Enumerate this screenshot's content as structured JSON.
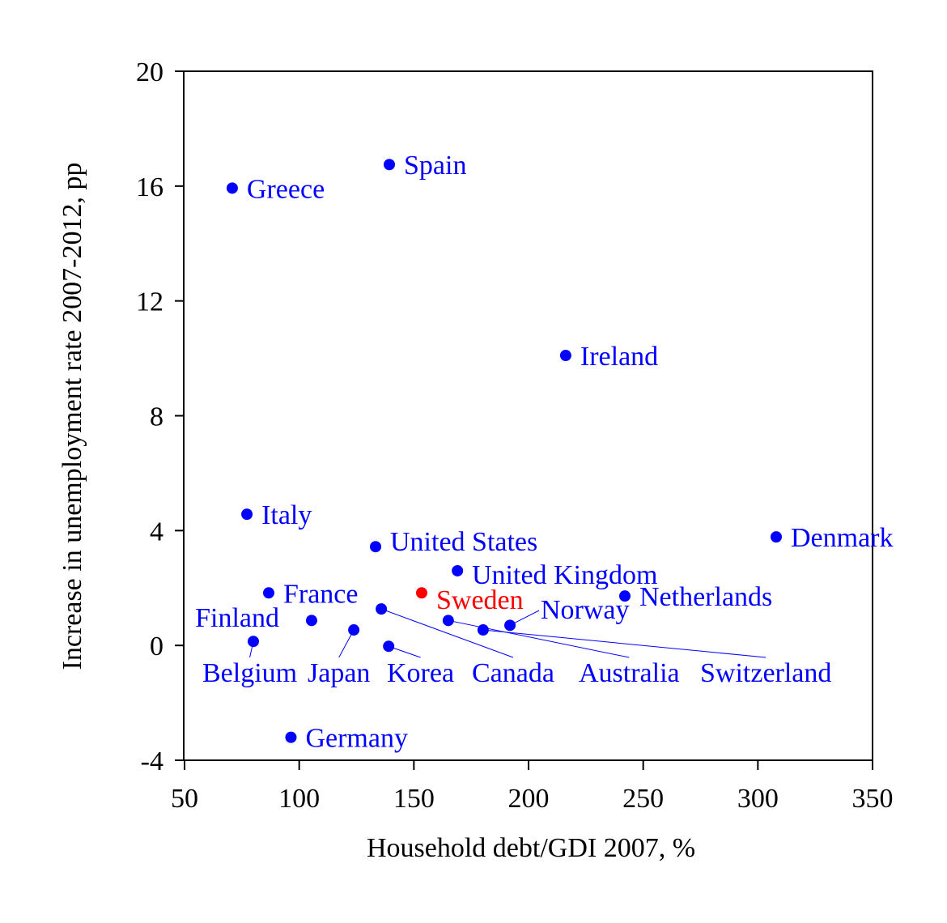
{
  "chart_data": {
    "type": "scatter",
    "title": "",
    "xlabel": "Household debt/GDI 2007, %",
    "ylabel": "Increase in unemployment rate 2007-2012, pp",
    "xlim": [
      50,
      350
    ],
    "ylim": [
      -4,
      20
    ],
    "xticks": [
      50,
      100,
      150,
      200,
      250,
      300,
      350
    ],
    "yticks": [
      -4,
      0,
      4,
      8,
      12,
      16,
      20
    ],
    "grid": false,
    "colors": {
      "default": "#0000ff",
      "highlight": "#ff0000"
    },
    "points": [
      {
        "label": "Greece",
        "x": 70.8,
        "y": 15.93,
        "color": "#0000ff"
      },
      {
        "label": "Spain",
        "x": 139.3,
        "y": 16.75,
        "color": "#0000ff"
      },
      {
        "label": "Ireland",
        "x": 216.2,
        "y": 10.1,
        "color": "#0000ff"
      },
      {
        "label": "Italy",
        "x": 77.2,
        "y": 4.57,
        "color": "#0000ff"
      },
      {
        "label": "Denmark",
        "x": 308.0,
        "y": 3.78,
        "color": "#0000ff"
      },
      {
        "label": "United States",
        "x": 133.3,
        "y": 3.44,
        "color": "#0000ff"
      },
      {
        "label": "United Kingdom",
        "x": 169.0,
        "y": 2.6,
        "color": "#0000ff"
      },
      {
        "label": "France",
        "x": 86.7,
        "y": 1.83,
        "color": "#0000ff"
      },
      {
        "label": "Sweden",
        "x": 153.4,
        "y": 1.83,
        "color": "#ff0000"
      },
      {
        "label": "Netherlands",
        "x": 242.0,
        "y": 1.72,
        "color": "#0000ff"
      },
      {
        "label": "Canada",
        "x": 135.8,
        "y": 1.27,
        "color": "#0000ff"
      },
      {
        "label": "Finland",
        "x": 105.4,
        "y": 0.87,
        "color": "#0000ff"
      },
      {
        "label": "Australia",
        "x": 165.0,
        "y": 0.87,
        "color": "#0000ff"
      },
      {
        "label": "Japan",
        "x": 123.8,
        "y": 0.54,
        "color": "#0000ff"
      },
      {
        "label": "Switzerland",
        "x": 180.2,
        "y": 0.54,
        "color": "#0000ff"
      },
      {
        "label": "Norway",
        "x": 191.9,
        "y": 0.7,
        "color": "#0000ff"
      },
      {
        "label": "Belgium",
        "x": 80.0,
        "y": 0.14,
        "color": "#0000ff"
      },
      {
        "label": "Korea",
        "x": 139.0,
        "y": -0.03,
        "color": "#0000ff"
      },
      {
        "label": "Germany",
        "x": 96.4,
        "y": -3.2,
        "color": "#0000ff"
      }
    ]
  }
}
